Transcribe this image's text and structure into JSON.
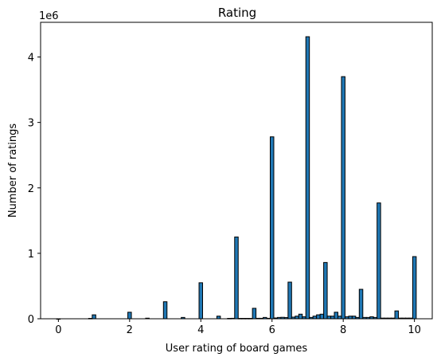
{
  "chart_data": {
    "type": "bar",
    "title": "Rating",
    "xlabel": "User rating of board games",
    "ylabel": "Number of ratings",
    "y_offset_label": "1e6",
    "xlim": [
      -0.5,
      10.5
    ],
    "ylim": [
      0,
      4.53
    ],
    "xticks": [
      0,
      2,
      4,
      6,
      8,
      10
    ],
    "yticks": [
      0,
      1,
      2,
      3,
      4
    ],
    "grid": false,
    "bar_color": "#1f77b4",
    "edge_color": "#000000",
    "bin_width": 0.1,
    "values": [
      [
        0,
        0.0
      ],
      [
        0.9,
        0.006
      ],
      [
        1,
        0.06
      ],
      [
        2,
        0.1
      ],
      [
        2.5,
        0.009
      ],
      [
        3,
        0.26
      ],
      [
        3.5,
        0.02
      ],
      [
        4,
        0.55
      ],
      [
        4.5,
        0.04
      ],
      [
        4.8,
        0.006
      ],
      [
        4.9,
        0.007
      ],
      [
        5,
        1.25
      ],
      [
        5.1,
        0.006
      ],
      [
        5.2,
        0.006
      ],
      [
        5.3,
        0.006
      ],
      [
        5.4,
        0.006
      ],
      [
        5.5,
        0.16
      ],
      [
        5.6,
        0.007
      ],
      [
        5.7,
        0.007
      ],
      [
        5.8,
        0.02
      ],
      [
        5.9,
        0.007
      ],
      [
        6,
        2.78
      ],
      [
        6.1,
        0.012
      ],
      [
        6.2,
        0.02
      ],
      [
        6.3,
        0.022
      ],
      [
        6.4,
        0.018
      ],
      [
        6.5,
        0.56
      ],
      [
        6.6,
        0.025
      ],
      [
        6.7,
        0.04
      ],
      [
        6.8,
        0.07
      ],
      [
        6.9,
        0.03
      ],
      [
        7,
        4.31
      ],
      [
        7.1,
        0.02
      ],
      [
        7.2,
        0.04
      ],
      [
        7.3,
        0.06
      ],
      [
        7.4,
        0.07
      ],
      [
        7.5,
        0.86
      ],
      [
        7.6,
        0.04
      ],
      [
        7.7,
        0.04
      ],
      [
        7.8,
        0.1
      ],
      [
        7.9,
        0.04
      ],
      [
        8,
        3.7
      ],
      [
        8.1,
        0.03
      ],
      [
        8.2,
        0.04
      ],
      [
        8.3,
        0.04
      ],
      [
        8.4,
        0.02
      ],
      [
        8.5,
        0.45
      ],
      [
        8.6,
        0.02
      ],
      [
        8.7,
        0.02
      ],
      [
        8.8,
        0.03
      ],
      [
        8.9,
        0.02
      ],
      [
        9,
        1.77
      ],
      [
        9.1,
        0.01
      ],
      [
        9.2,
        0.01
      ],
      [
        9.3,
        0.01
      ],
      [
        9.4,
        0.01
      ],
      [
        9.5,
        0.12
      ],
      [
        9.6,
        0.01
      ],
      [
        9.7,
        0.01
      ],
      [
        9.8,
        0.01
      ],
      [
        9.9,
        0.01
      ],
      [
        10,
        0.95
      ]
    ]
  }
}
